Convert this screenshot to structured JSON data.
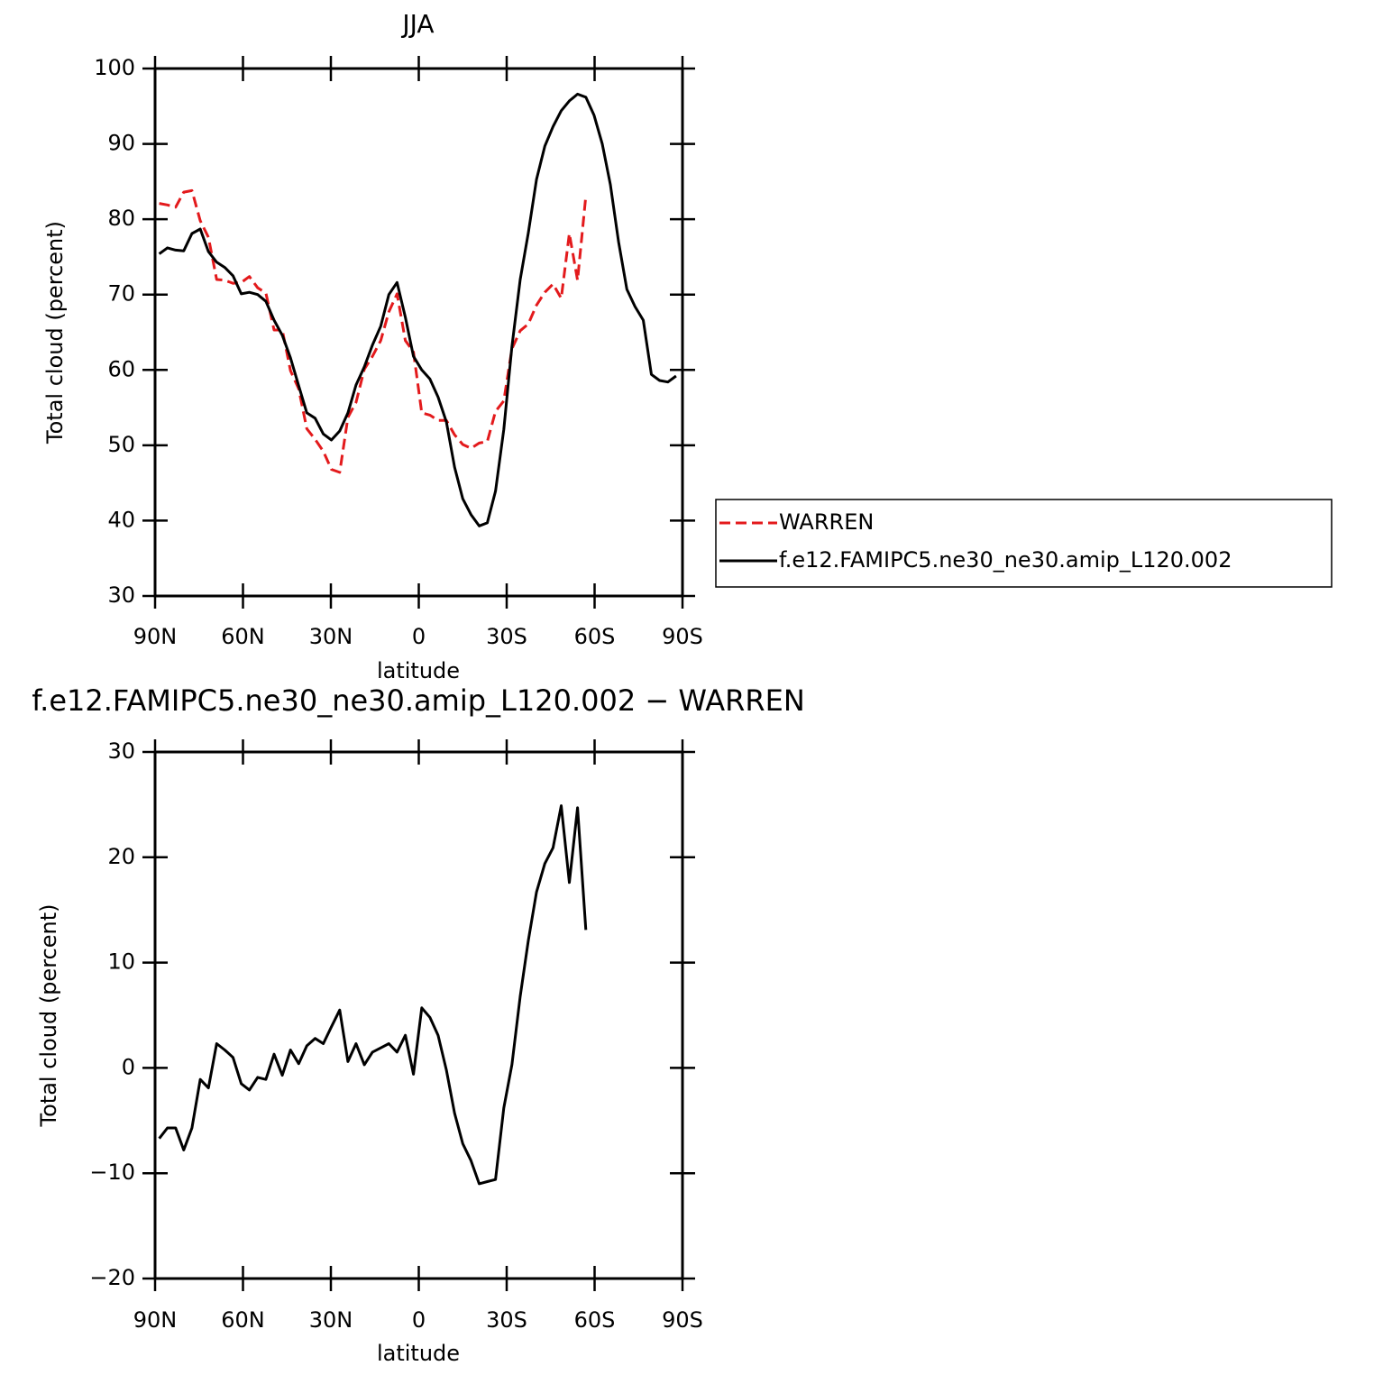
{
  "chart_data": [
    {
      "type": "line",
      "title": "JJA",
      "x_label": "latitude",
      "y_label": "Total cloud (percent)",
      "x": [
        88.6,
        85.8,
        83.0,
        80.2,
        77.4,
        74.6,
        71.8,
        69.0,
        66.2,
        63.4,
        60.6,
        57.8,
        55.0,
        52.2,
        49.4,
        46.6,
        43.8,
        41.0,
        38.2,
        35.4,
        32.6,
        29.8,
        27.0,
        24.2,
        21.4,
        18.6,
        15.8,
        13.0,
        10.2,
        7.4,
        4.6,
        1.8,
        -1.0,
        -3.8,
        -6.6,
        -9.4,
        -12.2,
        -15.0,
        -17.8,
        -20.6,
        -23.4,
        -26.2,
        -29.0,
        -31.8,
        -34.6,
        -37.4,
        -40.2,
        -43.0,
        -45.8,
        -48.6,
        -51.4,
        -54.2,
        -57.0,
        -59.8,
        -62.6,
        -65.4,
        -68.2,
        -71.0,
        -73.8,
        -76.6,
        -79.4,
        -82.2,
        -85.0,
        -87.8
      ],
      "series": [
        {
          "name": "WARREN",
          "color": "#e31a1c",
          "dash": true,
          "values": [
            82.1,
            81.9,
            81.6,
            83.6,
            83.8,
            79.8,
            77.6,
            72.0,
            71.9,
            71.5,
            71.6,
            72.4,
            70.9,
            70.2,
            65.3,
            65.3,
            59.9,
            57.5,
            52.2,
            50.8,
            49.2,
            46.8,
            46.4,
            53.7,
            55.7,
            60.1,
            61.8,
            63.9,
            67.7,
            70.1,
            63.9,
            62.4,
            54.3,
            54.0,
            53.3,
            53.3,
            51.4,
            50.1,
            49.6,
            50.3,
            50.5,
            54.5,
            55.9,
            62.8,
            65.2,
            66.1,
            68.6,
            70.3,
            71.4,
            69.5,
            78.1,
            71.9,
            83.1,
            null,
            null,
            null,
            null,
            null,
            null,
            null,
            null,
            null,
            null,
            null
          ]
        },
        {
          "name": "f.e12.FAMIPC5.ne30_ne30.amip_L120.002",
          "color": "#000000",
          "dash": false,
          "values": [
            75.4,
            76.2,
            75.9,
            75.8,
            78.1,
            78.7,
            75.7,
            74.3,
            73.6,
            72.5,
            70.1,
            70.3,
            70.0,
            69.1,
            66.6,
            64.6,
            61.6,
            57.9,
            54.3,
            53.6,
            51.5,
            50.7,
            51.9,
            54.3,
            58.0,
            60.4,
            63.3,
            65.8,
            70.0,
            71.6,
            67.0,
            61.8,
            60.0,
            58.8,
            56.4,
            53.1,
            47.1,
            42.9,
            40.8,
            39.3,
            39.7,
            43.9,
            52.1,
            63.1,
            72.0,
            78.2,
            85.3,
            89.7,
            92.3,
            94.4,
            95.7,
            96.6,
            96.2,
            93.8,
            90.0,
            84.6,
            77.0,
            70.7,
            68.4,
            66.6,
            59.4,
            58.6,
            58.4,
            59.2
          ]
        }
      ],
      "xlim": [
        90,
        -90
      ],
      "xticks": [
        {
          "value": 90,
          "label": "90N"
        },
        {
          "value": 60,
          "label": "60N"
        },
        {
          "value": 30,
          "label": "30N"
        },
        0,
        {
          "value": -30,
          "label": "30S"
        },
        {
          "value": -60,
          "label": "60S"
        },
        {
          "value": -90,
          "label": "90S"
        }
      ],
      "ylim": [
        30,
        100
      ],
      "yticks": [
        30,
        40,
        50,
        60,
        70,
        80,
        90,
        100
      ],
      "legend": "right"
    },
    {
      "type": "line",
      "title": "f.e12.FAMIPC5.ne30_ne30.amip_L120.002 − WARREN",
      "x_label": "latitude",
      "y_label": "Total cloud (percent)",
      "x": [
        88.6,
        85.8,
        83.0,
        80.2,
        77.4,
        74.6,
        71.8,
        69.0,
        66.2,
        63.4,
        60.6,
        57.8,
        55.0,
        52.2,
        49.4,
        46.6,
        43.8,
        41.0,
        38.2,
        35.4,
        32.6,
        29.8,
        27.0,
        24.2,
        21.4,
        18.6,
        15.8,
        13.0,
        10.2,
        7.4,
        4.6,
        1.8,
        -1.0,
        -3.8,
        -6.6,
        -9.4,
        -12.2,
        -15.0,
        -17.8,
        -20.6,
        -23.4,
        -26.2,
        -29.0,
        -31.8,
        -34.6,
        -37.4,
        -40.2,
        -43.0,
        -45.8,
        -48.6,
        -51.4,
        -54.2,
        -57.0
      ],
      "series": [
        {
          "color": "#000000",
          "dash": false,
          "values": [
            -6.7,
            -5.7,
            -5.7,
            -7.8,
            -5.7,
            -1.1,
            -1.9,
            2.3,
            1.7,
            1.0,
            -1.5,
            -2.1,
            -0.9,
            -1.1,
            1.3,
            -0.7,
            1.7,
            0.4,
            2.1,
            2.8,
            2.3,
            3.9,
            5.5,
            0.6,
            2.3,
            0.3,
            1.5,
            1.9,
            2.3,
            1.5,
            3.1,
            -0.6,
            5.7,
            4.8,
            3.1,
            -0.2,
            -4.3,
            -7.2,
            -8.8,
            -11.0,
            -10.8,
            -10.6,
            -3.8,
            0.3,
            6.8,
            12.1,
            16.7,
            19.4,
            20.9,
            24.9,
            17.6,
            24.7,
            13.1
          ]
        }
      ],
      "xlim": [
        90,
        -90
      ],
      "xticks": [
        {
          "value": 90,
          "label": "90N"
        },
        {
          "value": 60,
          "label": "60N"
        },
        {
          "value": 30,
          "label": "30N"
        },
        0,
        {
          "value": -30,
          "label": "30S"
        },
        {
          "value": -60,
          "label": "60S"
        },
        {
          "value": -90,
          "label": "90S"
        }
      ],
      "ylim": [
        -20,
        30
      ],
      "yticks": [
        {
          "value": -20,
          "label": "−20"
        },
        {
          "value": -10,
          "label": "−10"
        },
        0,
        10,
        20,
        30
      ]
    }
  ]
}
